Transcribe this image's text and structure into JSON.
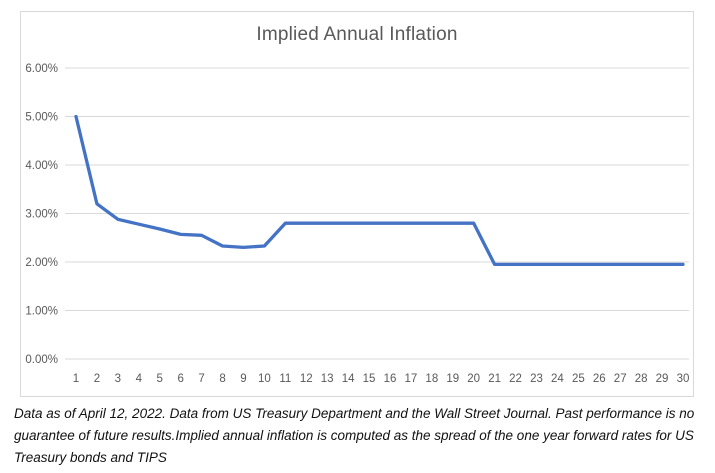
{
  "chart_data": {
    "type": "line",
    "title": "Implied Annual Inflation",
    "categories": [
      1,
      2,
      3,
      4,
      5,
      6,
      7,
      8,
      9,
      10,
      11,
      12,
      13,
      14,
      15,
      16,
      17,
      18,
      19,
      20,
      21,
      22,
      23,
      24,
      25,
      26,
      27,
      28,
      29,
      30
    ],
    "series": [
      {
        "name": "Implied Annual Inflation",
        "values": [
          5.0,
          3.2,
          2.88,
          2.78,
          2.68,
          2.57,
          2.55,
          2.33,
          2.3,
          2.33,
          2.8,
          2.8,
          2.8,
          2.8,
          2.8,
          2.8,
          2.8,
          2.8,
          2.8,
          2.8,
          1.95,
          1.95,
          1.95,
          1.95,
          1.95,
          1.95,
          1.95,
          1.95,
          1.95,
          1.95
        ]
      }
    ],
    "xlabel": "",
    "ylabel": "",
    "ylim": [
      0,
      6
    ],
    "y_tick_labels": [
      "0.00%",
      "1.00%",
      "2.00%",
      "3.00%",
      "4.00%",
      "5.00%",
      "6.00%"
    ],
    "grid": true,
    "legend": false,
    "colors": {
      "line": "#4472C4",
      "grid": "#d9d9d9",
      "axis_text": "#595959",
      "title_text": "#595959"
    }
  },
  "footnote": {
    "text": "Data as of April 12, 2022. Data from US Treasury Department and the Wall Street Journal. Past performance is no guarantee of future results.Implied annual inflation is computed as the spread of the one year forward rates for US Treasury bonds and TIPS"
  }
}
